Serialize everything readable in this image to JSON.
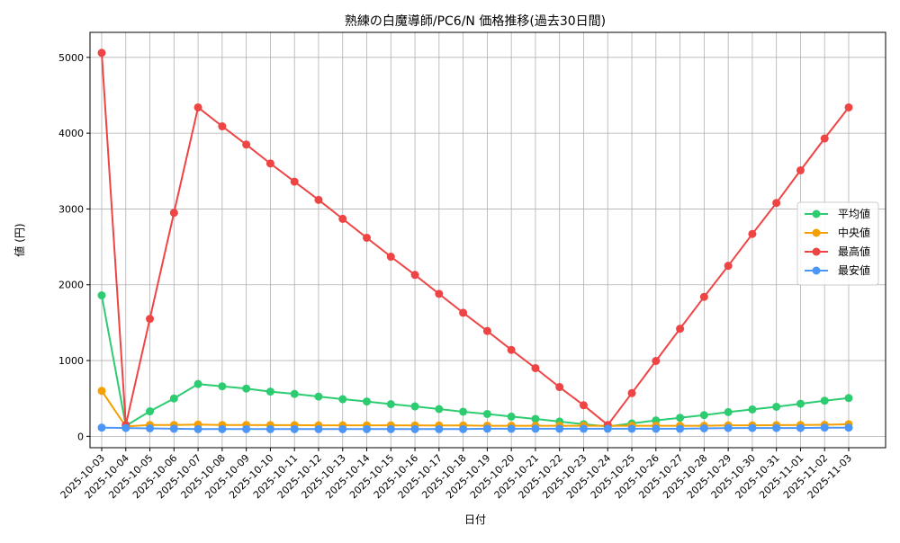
{
  "chart_data": {
    "type": "line",
    "title": "熟練の白魔導師/PC6/N 価格推移(過去30日間)",
    "xlabel": "日付",
    "ylabel": "値 (円)",
    "ylim": [
      -150,
      5330
    ],
    "yticks": [
      0,
      1000,
      2000,
      3000,
      4000,
      5000
    ],
    "grid": true,
    "legend_position": "right",
    "categories": [
      "2025-10-03",
      "2025-10-04",
      "2025-10-05",
      "2025-10-06",
      "2025-10-07",
      "2025-10-08",
      "2025-10-09",
      "2025-10-10",
      "2025-10-11",
      "2025-10-12",
      "2025-10-13",
      "2025-10-14",
      "2025-10-15",
      "2025-10-16",
      "2025-10-17",
      "2025-10-18",
      "2025-10-19",
      "2025-10-20",
      "2025-10-21",
      "2025-10-22",
      "2025-10-23",
      "2025-10-24",
      "2025-10-25",
      "2025-10-26",
      "2025-10-27",
      "2025-10-28",
      "2025-10-29",
      "2025-10-30",
      "2025-10-31",
      "2025-11-01",
      "2025-11-02",
      "2025-11-03"
    ],
    "series": [
      {
        "name": "平均値",
        "color": "#2ecc71",
        "values": [
          1860,
          140,
          330,
          500,
          690,
          660,
          630,
          590,
          560,
          525,
          490,
          460,
          425,
          395,
          360,
          325,
          295,
          260,
          230,
          195,
          160,
          130,
          170,
          210,
          245,
          280,
          320,
          355,
          390,
          430,
          470,
          505
        ]
      },
      {
        "name": "中央値",
        "color": "#f5a000",
        "values": [
          600,
          130,
          150,
          150,
          155,
          150,
          150,
          148,
          148,
          145,
          145,
          145,
          145,
          143,
          143,
          143,
          140,
          140,
          140,
          140,
          140,
          140,
          140,
          140,
          140,
          140,
          145,
          145,
          148,
          150,
          152,
          160
        ]
      },
      {
        "name": "最高値",
        "color": "#ef4444",
        "values": [
          5060,
          150,
          1550,
          2950,
          4340,
          4090,
          3850,
          3600,
          3360,
          3120,
          2870,
          2620,
          2370,
          2130,
          1880,
          1630,
          1390,
          1140,
          900,
          650,
          410,
          150,
          570,
          995,
          1420,
          1840,
          2250,
          2670,
          3080,
          3510,
          3930,
          4340
        ]
      },
      {
        "name": "最安値",
        "color": "#4c96f7",
        "values": [
          115,
          110,
          105,
          100,
          95,
          95,
          95,
          95,
          95,
          95,
          95,
          95,
          95,
          95,
          95,
          95,
          100,
          100,
          100,
          100,
          100,
          100,
          100,
          100,
          100,
          105,
          110,
          110,
          110,
          110,
          115,
          115
        ]
      }
    ]
  }
}
